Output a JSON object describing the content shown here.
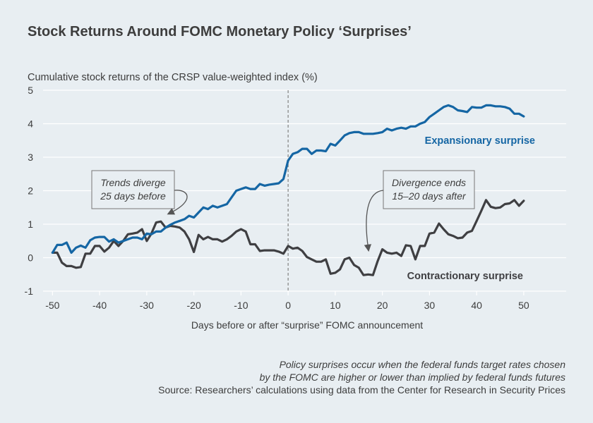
{
  "chart_data": {
    "type": "line",
    "title": "Stock Returns Around FOMC Monetary Policy ‘Surprises’",
    "ylabel": "Cumulative stock returns of the CRSP value-weighted index (%)",
    "xlabel": "Days before or after “surprise” FOMC announcement",
    "xlim": [
      -52,
      59
    ],
    "ylim": [
      -1,
      5
    ],
    "x_ticks": [
      -50,
      -40,
      -30,
      -20,
      -10,
      0,
      10,
      20,
      30,
      40,
      50
    ],
    "y_ticks": [
      -1,
      0,
      1,
      2,
      3,
      4,
      5
    ],
    "grid": "horizontal",
    "vertical_reference_line_x": 0,
    "series": [
      {
        "name": "Expansionary surprise",
        "color": "#1566a4",
        "x": [
          -50,
          -49,
          -48,
          -47,
          -46,
          -45,
          -44,
          -43,
          -42,
          -41,
          -40,
          -39,
          -38,
          -37,
          -36,
          -35,
          -34,
          -33,
          -32,
          -31,
          -30,
          -29,
          -28,
          -27,
          -26,
          -25,
          -24,
          -23,
          -22,
          -21,
          -20,
          -19,
          -18,
          -17,
          -16,
          -15,
          -14,
          -13,
          -12,
          -11,
          -10,
          -9,
          -8,
          -7,
          -6,
          -5,
          -4,
          -3,
          -2,
          -1,
          0,
          1,
          2,
          3,
          4,
          5,
          6,
          7,
          8,
          9,
          10,
          11,
          12,
          13,
          14,
          15,
          16,
          17,
          18,
          19,
          20,
          21,
          22,
          23,
          24,
          25,
          26,
          27,
          28,
          29,
          30,
          31,
          32,
          33,
          34,
          35,
          36,
          37,
          38,
          39,
          40,
          41,
          42,
          43,
          44,
          45,
          46,
          47,
          48,
          49,
          50
        ],
        "y": [
          0.15,
          0.38,
          0.38,
          0.45,
          0.15,
          0.3,
          0.36,
          0.3,
          0.52,
          0.6,
          0.62,
          0.62,
          0.48,
          0.55,
          0.45,
          0.5,
          0.55,
          0.6,
          0.6,
          0.55,
          0.72,
          0.7,
          0.78,
          0.78,
          0.9,
          0.98,
          1.05,
          1.1,
          1.15,
          1.25,
          1.2,
          1.35,
          1.5,
          1.45,
          1.55,
          1.5,
          1.55,
          1.6,
          1.8,
          2.0,
          2.05,
          2.1,
          2.05,
          2.05,
          2.2,
          2.15,
          2.18,
          2.2,
          2.22,
          2.35,
          2.9,
          3.1,
          3.15,
          3.25,
          3.25,
          3.1,
          3.2,
          3.2,
          3.18,
          3.4,
          3.35,
          3.5,
          3.65,
          3.72,
          3.75,
          3.75,
          3.7,
          3.7,
          3.7,
          3.72,
          3.75,
          3.85,
          3.8,
          3.85,
          3.88,
          3.85,
          3.92,
          3.92,
          4.0,
          4.05,
          4.2,
          4.3,
          4.4,
          4.5,
          4.55,
          4.5,
          4.4,
          4.38,
          4.35,
          4.5,
          4.48,
          4.48,
          4.55,
          4.55,
          4.52,
          4.52,
          4.5,
          4.45,
          4.3,
          4.3,
          4.22
        ]
      },
      {
        "name": "Contractionary surprise",
        "color": "#3f3f42",
        "x": [
          -50,
          -49,
          -48,
          -47,
          -46,
          -45,
          -44,
          -43,
          -42,
          -41,
          -40,
          -39,
          -38,
          -37,
          -36,
          -35,
          -34,
          -33,
          -32,
          -31,
          -30,
          -29,
          -28,
          -27,
          -26,
          -25,
          -24,
          -23,
          -22,
          -21,
          -20,
          -19,
          -18,
          -17,
          -16,
          -15,
          -14,
          -13,
          -12,
          -11,
          -10,
          -9,
          -8,
          -7,
          -6,
          -5,
          -4,
          -3,
          -2,
          -1,
          0,
          1,
          2,
          3,
          4,
          5,
          6,
          7,
          8,
          9,
          10,
          11,
          12,
          13,
          14,
          15,
          16,
          17,
          18,
          19,
          20,
          21,
          22,
          23,
          24,
          25,
          26,
          27,
          28,
          29,
          30,
          31,
          32,
          33,
          34,
          35,
          36,
          37,
          38,
          39,
          40,
          41,
          42,
          43,
          44,
          45,
          46,
          47,
          48,
          49,
          50
        ],
        "y": [
          0.15,
          0.15,
          -0.15,
          -0.25,
          -0.25,
          -0.3,
          -0.28,
          0.12,
          0.12,
          0.35,
          0.35,
          0.18,
          0.3,
          0.5,
          0.35,
          0.5,
          0.7,
          0.72,
          0.75,
          0.85,
          0.5,
          0.72,
          1.05,
          1.08,
          0.9,
          0.95,
          0.93,
          0.9,
          0.78,
          0.55,
          0.17,
          0.68,
          0.55,
          0.62,
          0.55,
          0.55,
          0.48,
          0.55,
          0.65,
          0.78,
          0.85,
          0.78,
          0.4,
          0.4,
          0.2,
          0.22,
          0.22,
          0.22,
          0.18,
          0.12,
          0.35,
          0.27,
          0.3,
          0.2,
          0.02,
          -0.05,
          -0.12,
          -0.12,
          -0.05,
          -0.48,
          -0.45,
          -0.35,
          -0.05,
          0.0,
          -0.22,
          -0.3,
          -0.52,
          -0.5,
          -0.52,
          -0.1,
          0.25,
          0.15,
          0.12,
          0.15,
          0.05,
          0.37,
          0.35,
          -0.05,
          0.35,
          0.35,
          0.72,
          0.75,
          1.02,
          0.85,
          0.7,
          0.65,
          0.58,
          0.6,
          0.75,
          0.8,
          1.1,
          1.4,
          1.72,
          1.52,
          1.48,
          1.5,
          1.6,
          1.62,
          1.72,
          1.55,
          1.7
        ]
      }
    ],
    "series_labels": {
      "expansionary": "Expansionary surprise",
      "contractionary": "Contractionary surprise"
    },
    "annotations": [
      {
        "lines": [
          "Trends diverge",
          "25 days before"
        ],
        "points_to_x": -25
      },
      {
        "lines": [
          "Divergence ends",
          "15–20 days after"
        ],
        "points_to_x": 17
      }
    ]
  },
  "footnote": {
    "line1": "Policy surprises occur when the federal funds target rates chosen",
    "line2": "by the FOMC are higher or lower than implied by federal funds futures",
    "line3": "Source: Researchers’ calculations using data from the Center for Research in Security Prices"
  },
  "colors": {
    "background": "#e8eef2",
    "grid": "#ffffff",
    "expansionary": "#1566a4",
    "contractionary": "#3f3f42",
    "reference_line": "#8a8a8a"
  }
}
